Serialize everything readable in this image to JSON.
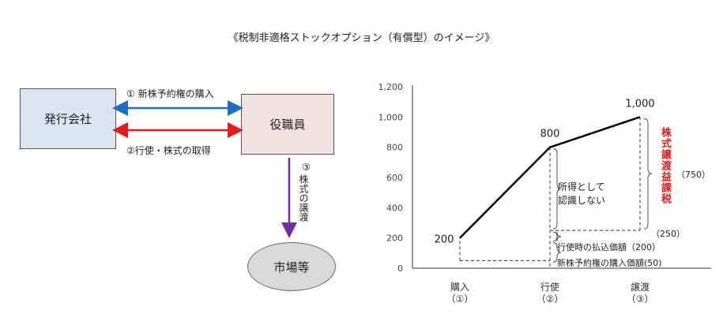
{
  "title": "《税制非適格ストックオプション（有償型）のイメージ》",
  "flow": {
    "issuer": "発行会社",
    "officer": "役職員",
    "market": "市場等",
    "arrow1": "① 新株予約権の購入",
    "arrow2": "②行使・株式の取得",
    "arrow3_num": "③",
    "arrow3_text": "株式の譲渡",
    "color_blue": "#1f6fc0",
    "color_red": "#e31b1b",
    "color_purple": "#7030a0"
  },
  "chart_labels": {
    "not_recognized": "所得として\n認識しない",
    "taxed": "株式譲渡益課税",
    "taxed_amount": "（750）",
    "gap_250": "（250）",
    "exercise_price": "行使時の払込価額（200）",
    "purchase_price": "新株予約権の購入価額(50)"
  },
  "chart_data": {
    "type": "line",
    "categories": [
      "購入\n（①）",
      "行使\n（②）",
      "譲渡\n（③）"
    ],
    "values": [
      200,
      800,
      1000
    ],
    "data_labels": [
      "200",
      "800",
      "1,000"
    ],
    "yticks": [
      "0",
      "200",
      "400",
      "600",
      "800",
      "1,000",
      "1,200"
    ],
    "ylim": [
      0,
      1200
    ]
  }
}
